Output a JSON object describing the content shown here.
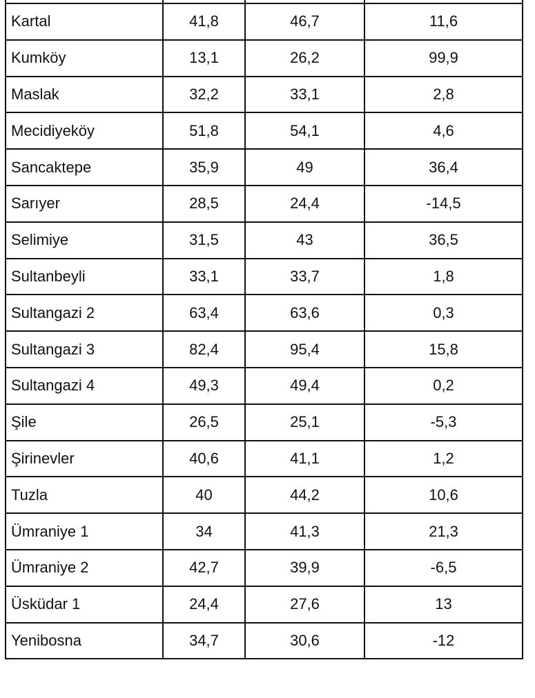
{
  "table": {
    "rows": [
      {
        "name": "Kartal",
        "v1": "41,8",
        "v2": "46,7",
        "v3": "11,6"
      },
      {
        "name": "Kumköy",
        "v1": "13,1",
        "v2": "26,2",
        "v3": "99,9"
      },
      {
        "name": "Maslak",
        "v1": "32,2",
        "v2": "33,1",
        "v3": "2,8"
      },
      {
        "name": "Mecidiyeköy",
        "v1": "51,8",
        "v2": "54,1",
        "v3": "4,6"
      },
      {
        "name": "Sancaktepe",
        "v1": "35,9",
        "v2": "49",
        "v3": "36,4"
      },
      {
        "name": "Sarıyer",
        "v1": "28,5",
        "v2": "24,4",
        "v3": "-14,5"
      },
      {
        "name": "Selimiye",
        "v1": "31,5",
        "v2": "43",
        "v3": "36,5"
      },
      {
        "name": "Sultanbeyli",
        "v1": "33,1",
        "v2": "33,7",
        "v3": "1,8"
      },
      {
        "name": "Sultangazi 2",
        "v1": "63,4",
        "v2": "63,6",
        "v3": "0,3"
      },
      {
        "name": "Sultangazi 3",
        "v1": "82,4",
        "v2": "95,4",
        "v3": "15,8"
      },
      {
        "name": "Sultangazi 4",
        "v1": "49,3",
        "v2": "49,4",
        "v3": "0,2"
      },
      {
        "name": "Şile",
        "v1": "26,5",
        "v2": "25,1",
        "v3": "-5,3"
      },
      {
        "name": "Şirinevler",
        "v1": "40,6",
        "v2": "41,1",
        "v3": "1,2"
      },
      {
        "name": "Tuzla",
        "v1": "40",
        "v2": "44,2",
        "v3": "10,6"
      },
      {
        "name": "Ümraniye 1",
        "v1": "34",
        "v2": "41,3",
        "v3": "21,3"
      },
      {
        "name": "Ümraniye 2",
        "v1": "42,7",
        "v2": "39,9",
        "v3": "-6,5"
      },
      {
        "name": "Üsküdar 1",
        "v1": "24,4",
        "v2": "27,6",
        "v3": "13"
      },
      {
        "name": "Yenibosna",
        "v1": "34,7",
        "v2": "30,6",
        "v3": "-12"
      }
    ]
  }
}
